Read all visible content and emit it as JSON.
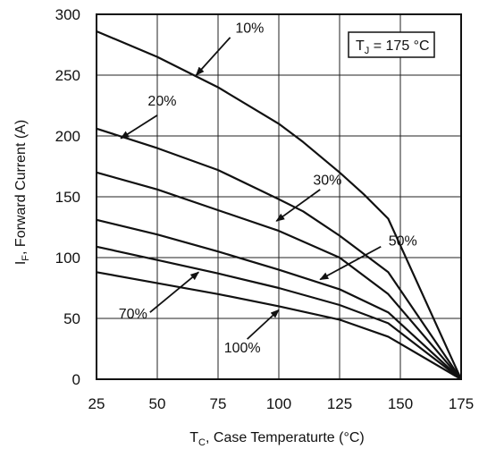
{
  "chart_data": {
    "type": "line",
    "xlabel_main": "T",
    "xlabel_sub": "C",
    "xlabel_rest": ", Case Temperaturte (°C)",
    "ylabel_main": "I",
    "ylabel_sub": "F",
    "ylabel_rest": ", Forward Current (A)",
    "xlim": [
      25,
      175
    ],
    "ylim": [
      0,
      300
    ],
    "xticks": [
      25,
      50,
      75,
      100,
      125,
      150,
      175
    ],
    "yticks": [
      0,
      50,
      100,
      150,
      200,
      250,
      300
    ],
    "grid": true,
    "inset": {
      "main": "T",
      "sub": "J",
      "rest": " = 175 °C"
    },
    "series": [
      {
        "name": "10%",
        "x": [
          25,
          50,
          75,
          100,
          110,
          125,
          135,
          145,
          175
        ],
        "y": [
          286,
          265,
          240,
          210,
          195,
          170,
          152,
          132,
          0
        ]
      },
      {
        "name": "20%",
        "x": [
          25,
          50,
          75,
          100,
          110,
          125,
          145,
          175
        ],
        "y": [
          206,
          190,
          172,
          148,
          138,
          118,
          88,
          0
        ]
      },
      {
        "name": "30%",
        "x": [
          25,
          50,
          75,
          100,
          125,
          145,
          175
        ],
        "y": [
          170,
          156,
          139,
          122,
          100,
          70,
          0
        ]
      },
      {
        "name": "50%",
        "x": [
          25,
          50,
          75,
          100,
          125,
          145,
          175
        ],
        "y": [
          131,
          119,
          105,
          90,
          74,
          55,
          0
        ]
      },
      {
        "name": "70%",
        "x": [
          25,
          50,
          75,
          100,
          125,
          145,
          175
        ],
        "y": [
          109,
          98,
          87,
          75,
          61,
          46,
          0
        ]
      },
      {
        "name": "100%",
        "x": [
          25,
          50,
          75,
          100,
          125,
          145,
          175
        ],
        "y": [
          88,
          79,
          70,
          60,
          49,
          35,
          0
        ]
      }
    ],
    "annotations": [
      {
        "text": "10%",
        "tx": 88,
        "ty": 285,
        "ax": 80,
        "ay": 281,
        "hx": 66,
        "hy": 250
      },
      {
        "text": "20%",
        "tx": 52,
        "ty": 225,
        "ax": 50,
        "ay": 217,
        "hx": 35,
        "hy": 198
      },
      {
        "text": "30%",
        "tx": 120,
        "ty": 160,
        "ax": 117,
        "ay": 156,
        "hx": 99,
        "hy": 130
      },
      {
        "text": "50%",
        "tx": 151,
        "ty": 110,
        "ax": 142,
        "ay": 109,
        "hx": 117,
        "hy": 82
      },
      {
        "text": "70%",
        "tx": 40,
        "ty": 50,
        "ax": 47,
        "ay": 55,
        "hx": 67,
        "hy": 88
      },
      {
        "text": "100%",
        "tx": 85,
        "ty": 22,
        "ax": 87,
        "ay": 33,
        "hx": 100,
        "hy": 57
      }
    ]
  }
}
